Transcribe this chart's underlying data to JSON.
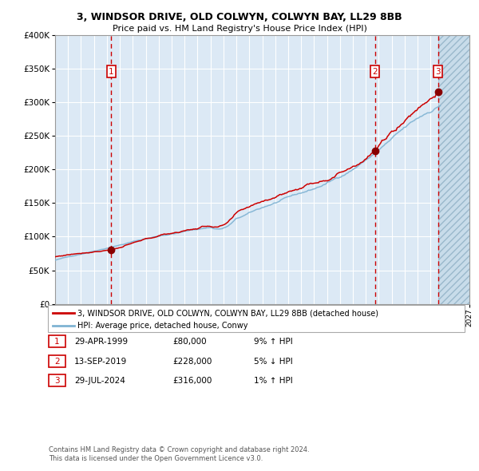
{
  "title1": "3, WINDSOR DRIVE, OLD COLWYN, COLWYN BAY, LL29 8BB",
  "title2": "Price paid vs. HM Land Registry's House Price Index (HPI)",
  "legend1": "3, WINDSOR DRIVE, OLD COLWYN, COLWYN BAY, LL29 8BB (detached house)",
  "legend2": "HPI: Average price, detached house, Conwy",
  "transactions": [
    {
      "label": "1",
      "date": "29-APR-1999",
      "price": 80000,
      "hpi_rel": "9% ↑ HPI",
      "x": 1999.33
    },
    {
      "label": "2",
      "date": "13-SEP-2019",
      "price": 228000,
      "hpi_rel": "5% ↓ HPI",
      "x": 2019.71
    },
    {
      "label": "3",
      "date": "29-JUL-2024",
      "price": 316000,
      "hpi_rel": "1% ↑ HPI",
      "x": 2024.58
    }
  ],
  "footnote1": "Contains HM Land Registry data © Crown copyright and database right 2024.",
  "footnote2": "This data is licensed under the Open Government Licence v3.0.",
  "xmin": 1995.0,
  "xmax": 2027.0,
  "ymin": 0,
  "ymax": 400000,
  "bg_color": "#dce9f5",
  "grid_color": "#ffffff",
  "line_color_red": "#cc0000",
  "line_color_blue": "#7fb3d3",
  "dot_color": "#880000",
  "dashed_line_color": "#cc0000",
  "box_color": "#cc0000",
  "future_cutoff": 2024.58
}
